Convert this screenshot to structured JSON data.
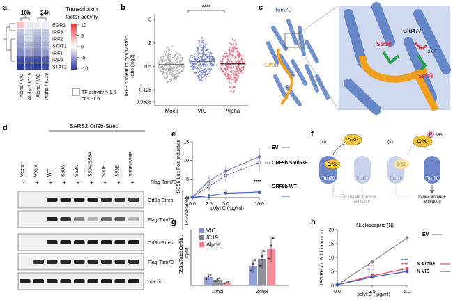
{
  "panel_a": {
    "label": "a",
    "col_10h": "10h",
    "col_24h": "24h",
    "title_line1": "Transcription",
    "title_line2": "factor activity",
    "scale": [
      "10",
      "5",
      "0",
      "-5",
      "-10"
    ],
    "rows": [
      "EGR1",
      "IRF3",
      "IRF2",
      "STAT1",
      "IRF1",
      "IRF9",
      "STAT2"
    ],
    "x_labels": [
      "Alpha / VIC",
      "Alpha / IC19",
      "Alpha / VIC",
      "Alpha / IC19"
    ],
    "note_line1": "TF activity > 1.5",
    "note_line2": "or < -1.5",
    "colors": {
      "high": "#e63b3b",
      "mid": "#ffffff",
      "low": "#2a3a9a"
    },
    "cells": [
      [
        3,
        -1,
        -1,
        -1
      ],
      [
        -3,
        -2,
        -3,
        -3
      ],
      [
        -4,
        -2,
        -4,
        -3
      ],
      [
        -5,
        -4,
        -5,
        -4
      ],
      [
        -6,
        -5,
        -6,
        -5
      ],
      [
        -9,
        -8,
        -9,
        -8
      ],
      [
        -10,
        -9,
        -10,
        -9
      ]
    ]
  },
  "panel_b": {
    "label": "b",
    "ylabel_line1": "IRF3 nuclear to cytoplasmic",
    "ylabel_line2": "ratio (log2)",
    "yticks": [
      "8",
      "2",
      "0.5",
      "0.125",
      "0.0625"
    ],
    "categories": [
      "Mock",
      "VIC",
      "Alpha"
    ],
    "medians": [
      0.55,
      0.68,
      0.58
    ],
    "significance": "****",
    "colors": {
      "Mock": "#a9a9a9",
      "VIC": "#6f7fc9",
      "Alpha": "#e0627a"
    }
  },
  "panel_c": {
    "label": "c",
    "tom70": "Tom70",
    "orf9b": "Orf9b",
    "glu477": "Glu477",
    "ser50": "Ser50",
    "ser53": "Ser53",
    "dist": "2.9Å"
  },
  "panel_d": {
    "label": "d",
    "header": "SARS2 Orf9b-Strep",
    "lanes": [
      "Vector",
      "Vector",
      "WT",
      "S50A",
      "S53A",
      "S50A/S53A",
      "S50E",
      "S53E",
      "S50E/S53E"
    ],
    "tom70_row": [
      "-",
      "+",
      "+",
      "+",
      "+",
      "+",
      "+",
      "+",
      "+"
    ],
    "tom70_label": "Flag-Tom70",
    "blots": [
      "Orf9b-Strep",
      "Flag-Tom70",
      "Orf9b-Strep",
      "Flag-Tom70",
      "b-actin"
    ],
    "group_ip": "IP: Anti-Strep",
    "group_input": "Input"
  },
  "panel_e": {
    "label": "e",
    "ylabel": "ISG56-Luc Fold induction",
    "xlabel": "polyI:C ( μg/ml)",
    "significance": "****",
    "legend": [
      "EV",
      "ORF9b S50/53E",
      "ORF9b WT"
    ],
    "chart_data": {
      "type": "line",
      "x": [
        0,
        2.5,
        5.0,
        10.0
      ],
      "xticks": [
        "0.0",
        "2.5",
        "5.0",
        "10.0"
      ],
      "ylim": [
        0,
        15
      ],
      "yticks": [
        0,
        5,
        10,
        15
      ],
      "series": [
        {
          "name": "EV",
          "values": [
            0.2,
            4.5,
            7.2,
            11
          ],
          "color": "#7f83b5"
        },
        {
          "name": "ORF9b S50/53E",
          "values": [
            0.2,
            3.0,
            6.0,
            9.5
          ],
          "color": "#4d5fa8"
        },
        {
          "name": "ORF9b WT",
          "values": [
            0.1,
            0.5,
            1.2,
            1.5
          ],
          "color": "#4a6cc8"
        }
      ]
    }
  },
  "panel_f": {
    "label": "f",
    "i": "(i)",
    "ii": "(ii)",
    "orf9b": "Orf9b",
    "tom70": "Tom70",
    "p": "P",
    "s53": "S53",
    "innate1": "Innate immune",
    "innate2": "activation"
  },
  "panel_g": {
    "label": "g",
    "ylabel": "S53p/Total Orf9b",
    "legend": [
      "VIC",
      "IC19",
      "Alpha"
    ],
    "chart_data": {
      "type": "bar",
      "categories": [
        "10hpi",
        "24hpi"
      ],
      "ylim": [
        0,
        0.2
      ],
      "series": [
        {
          "name": "VIC",
          "values": [
            0.03,
            0.07
          ],
          "color": "#7f8fd0"
        },
        {
          "name": "IC19",
          "values": [
            0.02,
            0.095
          ],
          "color": "#7a7a88"
        },
        {
          "name": "Alpha",
          "values": [
            0.01,
            0.13
          ],
          "color": "#f07a8a"
        }
      ]
    }
  },
  "panel_h": {
    "label": "h",
    "title": "Nucleocapsid (N)",
    "ylabel": "ISG56-Luc Fold induction",
    "xlabel": "polyI:C ( μg/ml)",
    "sig": "****",
    "legend": [
      "EV",
      "N Alpha",
      "N VIC"
    ],
    "chart_data": {
      "type": "line",
      "x": [
        0,
        2.5,
        5.0
      ],
      "xticks": [
        "0.0",
        "2.5",
        "5.0"
      ],
      "ylim": [
        0,
        20
      ],
      "yticks": [
        0,
        5,
        10,
        15,
        20
      ],
      "series": [
        {
          "name": "EV",
          "values": [
            0.2,
            8.5,
            17
          ],
          "color": "#8a8a8a"
        },
        {
          "name": "N Alpha",
          "values": [
            0.2,
            3.5,
            6
          ],
          "color": "#e24a6a"
        },
        {
          "name": "N VIC",
          "values": [
            0.2,
            3.0,
            5
          ],
          "color": "#3f57b8"
        }
      ]
    }
  }
}
